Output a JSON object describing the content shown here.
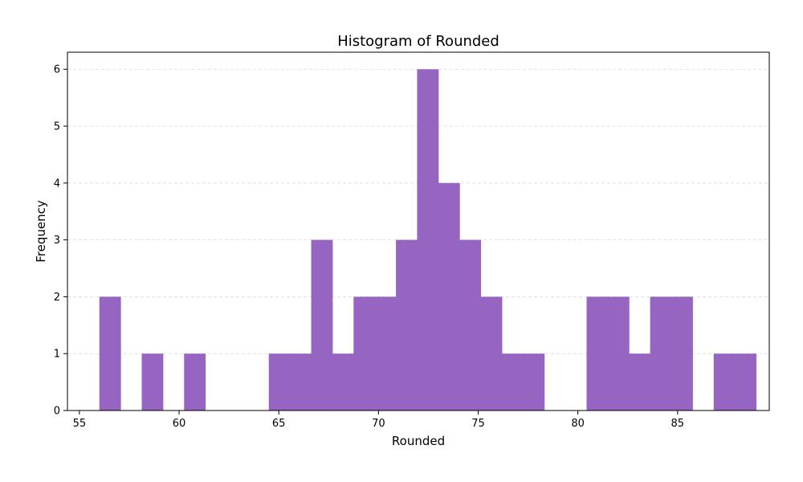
{
  "chart_data": {
    "type": "bar",
    "title": "Histogram of Rounded",
    "xlabel": "Rounded",
    "ylabel": "Frequency",
    "bin_start": 56,
    "bin_width": 1.0625,
    "counts": [
      2,
      0,
      1,
      0,
      1,
      0,
      0,
      0,
      1,
      1,
      3,
      1,
      2,
      2,
      3,
      6,
      4,
      3,
      2,
      1,
      1,
      0,
      0,
      2,
      2,
      1,
      2,
      2,
      0,
      1,
      1
    ],
    "xlim": [
      54.4,
      89.6
    ],
    "ylim": [
      0,
      6.3
    ],
    "x_ticks": [
      55,
      60,
      65,
      70,
      75,
      80,
      85
    ],
    "y_ticks": [
      0,
      1,
      2,
      3,
      4,
      5,
      6
    ],
    "grid": "horizontal-dashed",
    "bar_color": "#9664c1"
  }
}
